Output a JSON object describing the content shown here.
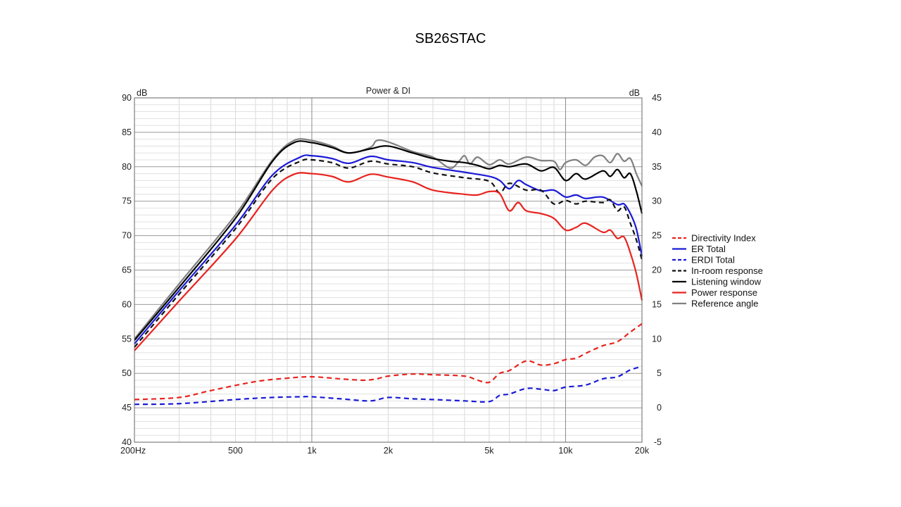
{
  "slide_title": "SB26STAC",
  "chart_data": {
    "type": "line",
    "title": "Power & DI",
    "x_scale": "log",
    "xlim": [
      200,
      20000
    ],
    "ylim_left": [
      40,
      90
    ],
    "ylim_right": [
      -5,
      45
    ],
    "left_unit": "dB",
    "right_unit": "dB",
    "x_ticks": [
      {
        "v": 200,
        "label": "200Hz"
      },
      {
        "v": 500,
        "label": "500"
      },
      {
        "v": 1000,
        "label": "1k"
      },
      {
        "v": 2000,
        "label": "2k"
      },
      {
        "v": 5000,
        "label": "5k"
      },
      {
        "v": 10000,
        "label": "10k"
      },
      {
        "v": 20000,
        "label": "20k"
      }
    ],
    "y_ticks_left": [
      40,
      45,
      50,
      55,
      60,
      65,
      70,
      75,
      80,
      85,
      90
    ],
    "y_ticks_right": [
      -5,
      0,
      5,
      10,
      15,
      20,
      25,
      30,
      35,
      40,
      45
    ],
    "grid": true,
    "legend_position": "right",
    "series": [
      {
        "name": "Directivity Index",
        "color": "#e8231f",
        "dash": true,
        "axis": "right",
        "x": [
          200,
          300,
          400,
          600,
          800,
          1000,
          1300,
          1600,
          1800,
          2000,
          2500,
          3000,
          4000,
          4500,
          5000,
          5500,
          6000,
          7000,
          8000,
          9000,
          10000,
          11000,
          12000,
          14000,
          16000,
          18000,
          20000
        ],
        "y": [
          1.2,
          1.5,
          2.5,
          3.8,
          4.3,
          4.5,
          4.2,
          4.0,
          4.2,
          4.6,
          4.9,
          4.8,
          4.6,
          4.0,
          3.7,
          5.0,
          5.4,
          6.8,
          6.2,
          6.4,
          7.0,
          7.2,
          7.9,
          9.0,
          9.6,
          11.0,
          12.2
        ]
      },
      {
        "name": "ER Total",
        "color": "#1a1ad6",
        "dash": false,
        "axis": "left",
        "x": [
          200,
          300,
          500,
          700,
          900,
          1000,
          1200,
          1400,
          1700,
          2000,
          2500,
          3000,
          4000,
          5000,
          5500,
          6000,
          6500,
          7000,
          8000,
          9000,
          10000,
          11000,
          12000,
          14000,
          16000,
          17000,
          18000,
          19000,
          20000
        ],
        "y": [
          54.3,
          62.0,
          71.5,
          78.8,
          81.4,
          81.6,
          81.2,
          80.5,
          81.5,
          81.0,
          80.6,
          79.9,
          79.2,
          78.6,
          78.0,
          76.8,
          78.0,
          77.4,
          76.5,
          76.6,
          75.6,
          75.9,
          75.4,
          75.6,
          74.5,
          74.6,
          73.2,
          71.0,
          67.0
        ]
      },
      {
        "name": "ERDI Total",
        "color": "#1a1ad6",
        "dash": true,
        "axis": "right",
        "x": [
          200,
          300,
          500,
          700,
          900,
          1000,
          1300,
          1700,
          2000,
          2500,
          3000,
          4000,
          5000,
          5500,
          6000,
          7000,
          8000,
          9000,
          10000,
          12000,
          14000,
          16000,
          18000,
          20000
        ],
        "y": [
          0.5,
          0.6,
          1.2,
          1.5,
          1.6,
          1.6,
          1.3,
          1.0,
          1.5,
          1.3,
          1.2,
          1.0,
          0.9,
          1.8,
          2.0,
          2.8,
          2.7,
          2.5,
          3.0,
          3.3,
          4.2,
          4.5,
          5.5,
          6.0
        ]
      },
      {
        "name": "In-room response",
        "color": "#111111",
        "dash": true,
        "axis": "left",
        "x": [
          200,
          300,
          500,
          700,
          900,
          1000,
          1200,
          1400,
          1700,
          2000,
          2500,
          3000,
          4000,
          5000,
          5500,
          6000,
          7000,
          8000,
          9000,
          10000,
          11000,
          12000,
          14000,
          15000,
          16000,
          17000,
          18000,
          19000,
          20000
        ],
        "y": [
          53.8,
          61.5,
          71.0,
          78.3,
          80.8,
          81.0,
          80.6,
          79.8,
          80.8,
          80.4,
          80.0,
          79.1,
          78.4,
          77.9,
          76.2,
          77.6,
          76.6,
          76.6,
          74.6,
          75.1,
          74.6,
          75.0,
          74.8,
          75.2,
          73.6,
          74.2,
          71.8,
          69.4,
          66.5
        ]
      },
      {
        "name": "Listening window",
        "color": "#000000",
        "dash": false,
        "axis": "left",
        "x": [
          200,
          300,
          500,
          700,
          850,
          1000,
          1200,
          1400,
          1700,
          2000,
          2500,
          3000,
          3500,
          4000,
          4500,
          5000,
          5500,
          6000,
          7000,
          8000,
          9000,
          10000,
          11000,
          12000,
          14000,
          15000,
          16000,
          17000,
          18000,
          19000,
          20000
        ],
        "y": [
          54.8,
          62.5,
          72.5,
          80.8,
          83.5,
          83.5,
          82.8,
          82.0,
          82.6,
          83.0,
          82.0,
          81.2,
          80.8,
          80.6,
          80.2,
          79.7,
          80.2,
          80.0,
          80.4,
          79.4,
          79.9,
          78.0,
          79.0,
          78.2,
          79.4,
          78.6,
          79.6,
          78.4,
          79.0,
          76.5,
          73.2
        ]
      },
      {
        "name": "Power response",
        "color": "#e8231f",
        "dash": false,
        "axis": "left",
        "x": [
          200,
          300,
          500,
          700,
          850,
          1000,
          1200,
          1400,
          1700,
          2000,
          2500,
          3000,
          4000,
          4500,
          5000,
          5500,
          6000,
          6500,
          7000,
          8000,
          9000,
          10000,
          11000,
          12000,
          14000,
          15000,
          16000,
          17000,
          18000,
          19000,
          20000
        ],
        "y": [
          53.3,
          60.5,
          69.5,
          76.6,
          78.9,
          79.0,
          78.6,
          77.8,
          78.9,
          78.5,
          77.8,
          76.6,
          76.0,
          75.9,
          76.4,
          76.1,
          73.6,
          74.8,
          73.6,
          73.2,
          72.5,
          70.8,
          71.2,
          71.8,
          70.5,
          70.8,
          69.6,
          69.8,
          67.5,
          64.5,
          60.6
        ]
      },
      {
        "name": "Reference angle",
        "color": "#808080",
        "dash": false,
        "axis": "left",
        "x": [
          200,
          300,
          500,
          700,
          850,
          1000,
          1200,
          1400,
          1700,
          1800,
          2000,
          2500,
          3000,
          3500,
          3800,
          4000,
          4200,
          4500,
          5000,
          5500,
          6000,
          7000,
          8000,
          9000,
          9500,
          10000,
          11000,
          12000,
          13000,
          14000,
          15000,
          16000,
          17000,
          18000,
          19000,
          20000
        ],
        "y": [
          55.0,
          63.0,
          73.0,
          81.0,
          83.8,
          83.8,
          83.0,
          82.0,
          82.8,
          83.8,
          83.6,
          82.2,
          81.4,
          79.8,
          80.8,
          81.6,
          80.4,
          81.4,
          80.3,
          81.0,
          80.4,
          81.4,
          80.9,
          80.8,
          79.6,
          80.6,
          81.0,
          80.2,
          81.4,
          81.6,
          80.6,
          81.9,
          80.8,
          81.2,
          79.0,
          77.2
        ]
      }
    ]
  }
}
